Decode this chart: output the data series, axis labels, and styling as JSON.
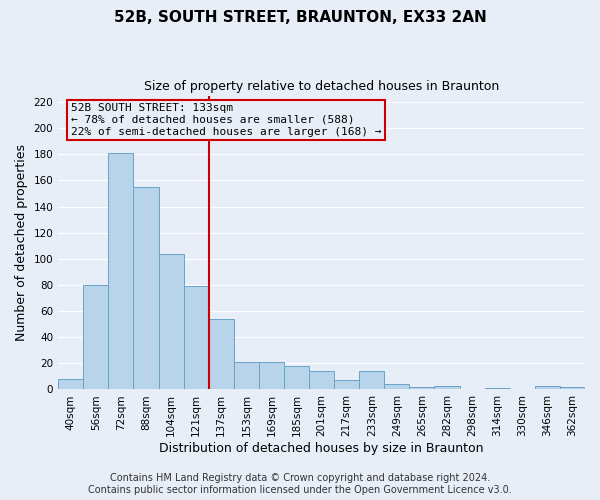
{
  "title": "52B, SOUTH STREET, BRAUNTON, EX33 2AN",
  "subtitle": "Size of property relative to detached houses in Braunton",
  "xlabel": "Distribution of detached houses by size in Braunton",
  "ylabel": "Number of detached properties",
  "bar_labels": [
    "40sqm",
    "56sqm",
    "72sqm",
    "88sqm",
    "104sqm",
    "121sqm",
    "137sqm",
    "153sqm",
    "169sqm",
    "185sqm",
    "201sqm",
    "217sqm",
    "233sqm",
    "249sqm",
    "265sqm",
    "282sqm",
    "298sqm",
    "314sqm",
    "330sqm",
    "346sqm",
    "362sqm"
  ],
  "bar_values": [
    8,
    80,
    181,
    155,
    104,
    79,
    54,
    21,
    21,
    18,
    14,
    7,
    14,
    4,
    2,
    3,
    0,
    1,
    0,
    3,
    2
  ],
  "bar_color": "#b8d4ea",
  "bar_edge_color": "#6aa3c8",
  "vline_color": "#cc0000",
  "vline_pos": 5.5,
  "annotation_text_line1": "52B SOUTH STREET: 133sqm",
  "annotation_text_line2": "← 78% of detached houses are smaller (588)",
  "annotation_text_line3": "22% of semi-detached houses are larger (168) →",
  "ylim": [
    0,
    225
  ],
  "yticks": [
    0,
    20,
    40,
    60,
    80,
    100,
    120,
    140,
    160,
    180,
    200,
    220
  ],
  "footer_line1": "Contains HM Land Registry data © Crown copyright and database right 2024.",
  "footer_line2": "Contains public sector information licensed under the Open Government Licence v3.0.",
  "bg_color": "#e8eef8",
  "grid_color": "#ffffff",
  "title_fontsize": 11,
  "subtitle_fontsize": 9,
  "axis_label_fontsize": 9,
  "tick_fontsize": 7.5,
  "footer_fontsize": 7,
  "annot_fontsize": 8
}
